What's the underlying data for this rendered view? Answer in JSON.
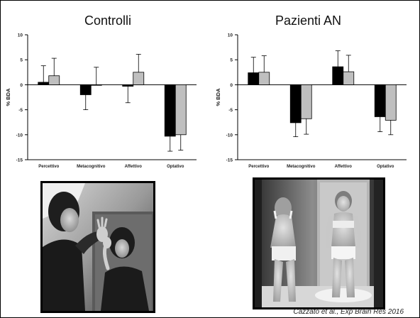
{
  "panels": [
    {
      "title": "Controlli"
    },
    {
      "title": "Pazienti AN"
    }
  ],
  "chart_data": [
    {
      "type": "bar",
      "title": "Controlli",
      "ylabel": "% BDA",
      "xlabel": "",
      "ylim": [
        -15,
        10
      ],
      "yticks": [
        10,
        5,
        0,
        -5,
        -10,
        -15
      ],
      "categories": [
        "Percettivo",
        "Metacognitivo",
        "Affettivo",
        "Optativo"
      ],
      "series": [
        {
          "color": "#000000",
          "values": [
            0.5,
            -2.0,
            -0.3,
            -10.3
          ],
          "errors": [
            3.3,
            3.0,
            3.3,
            3.0
          ]
        },
        {
          "color": "#bfbfbf",
          "values": [
            1.8,
            0.0,
            2.5,
            -10.0
          ],
          "errors": [
            3.5,
            3.5,
            3.6,
            3.1
          ]
        }
      ],
      "grid": false
    },
    {
      "type": "bar",
      "title": "Pazienti AN",
      "ylabel": "% BDA",
      "xlabel": "",
      "ylim": [
        -15,
        10
      ],
      "yticks": [
        10,
        5,
        0,
        -5,
        -10,
        -15
      ],
      "categories": [
        "Percettivo",
        "Metacognitivo",
        "Affettivo",
        "Optativo"
      ],
      "series": [
        {
          "color": "#000000",
          "values": [
            2.4,
            -7.6,
            3.6,
            -6.4
          ],
          "errors": [
            3.1,
            2.8,
            3.2,
            3.0
          ]
        },
        {
          "color": "#bfbfbf",
          "values": [
            2.5,
            -6.8,
            2.6,
            -7.1
          ],
          "errors": [
            3.3,
            3.1,
            3.3,
            2.9
          ]
        }
      ],
      "grid": false
    }
  ],
  "citation": "Cazzato et al., Exp Brain Res 2016"
}
